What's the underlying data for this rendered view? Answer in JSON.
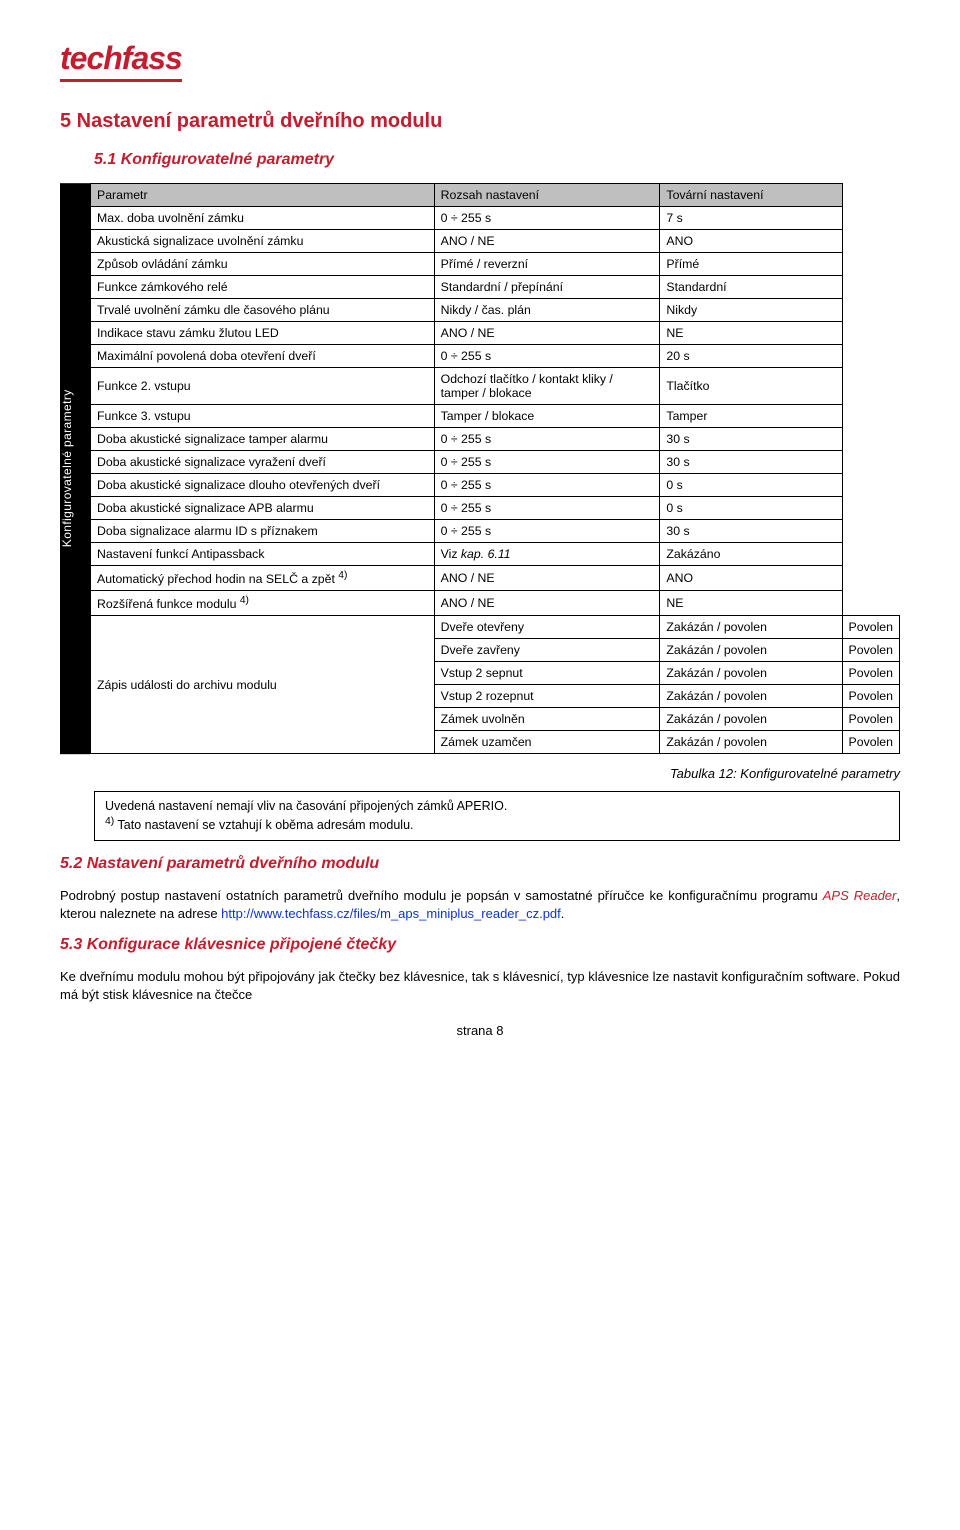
{
  "logo": "techfass",
  "h1": "5  Nastavení parametrů dveřního modulu",
  "h2_1": "5.1 Konfigurovatelné parametry",
  "sidebar_label": "Konfigurovatelné parametry",
  "table": {
    "header": {
      "col0": "Parametr",
      "col1": "Rozsah nastavení",
      "col2": "Tovární nastavení"
    },
    "rows": [
      {
        "c0": "Max. doba uvolnění zámku",
        "c1": "0 ÷ 255 s",
        "c2": "7 s"
      },
      {
        "c0": "Akustická signalizace uvolnění zámku",
        "c1": "ANO / NE",
        "c2": "ANO"
      },
      {
        "c0": "Způsob ovládání zámku",
        "c1": "Přímé / reverzní",
        "c2": "Přímé"
      },
      {
        "c0": "Funkce zámkového relé",
        "c1": "Standardní / přepínání",
        "c2": "Standardní"
      },
      {
        "c0": "Trvalé uvolnění zámku dle časového plánu",
        "c1": "Nikdy / čas. plán",
        "c2": "Nikdy"
      },
      {
        "c0": "Indikace stavu zámku žlutou LED",
        "c1": "ANO / NE",
        "c2": "NE"
      },
      {
        "c0": "Maximální povolená doba otevření dveří",
        "c1": "0 ÷ 255 s",
        "c2": "20 s"
      },
      {
        "c0": "Funkce 2. vstupu",
        "c1": "Odchozí tlačítko / kontakt kliky / tamper / blokace",
        "c2": "Tlačítko"
      },
      {
        "c0": "Funkce 3. vstupu",
        "c1": "Tamper / blokace",
        "c2": "Tamper"
      },
      {
        "c0": "Doba akustické signalizace tamper alarmu",
        "c1": "0 ÷ 255 s",
        "c2": "30 s"
      },
      {
        "c0": "Doba akustické signalizace vyražení dveří",
        "c1": "0 ÷ 255 s",
        "c2": "30 s"
      },
      {
        "c0": "Doba akustické signalizace dlouho otevřených dveří",
        "c1": "0 ÷ 255 s",
        "c2": "0 s"
      },
      {
        "c0": "Doba akustické signalizace APB alarmu",
        "c1": "0 ÷ 255 s",
        "c2": "0 s"
      },
      {
        "c0": "Doba signalizace alarmu ID s příznakem",
        "c1": "0 ÷ 255 s",
        "c2": "30 s"
      },
      {
        "c0": "Nastavení funkcí Antipassback",
        "c1": "Viz kap. 6.11",
        "c2": "Zakázáno",
        "c1_italic": true
      },
      {
        "c0": "Automatický přechod hodin na SELČ a zpět 4)",
        "c1": "ANO / NE",
        "c2": "ANO"
      },
      {
        "c0": "Rozšířená funkce modulu 4)",
        "c1": "ANO / NE",
        "c2": "NE"
      }
    ],
    "group_label": "Zápis události do archivu modulu",
    "group_rows": [
      {
        "c0": "Dveře otevřeny",
        "c1": "Zakázán / povolen",
        "c2": "Povolen"
      },
      {
        "c0": "Dveře zavřeny",
        "c1": "Zakázán / povolen",
        "c2": "Povolen"
      },
      {
        "c0": "Vstup 2 sepnut",
        "c1": "Zakázán / povolen",
        "c2": "Povolen"
      },
      {
        "c0": "Vstup 2 rozepnut",
        "c1": "Zakázán / povolen",
        "c2": "Povolen"
      },
      {
        "c0": "Zámek uvolněn",
        "c1": "Zakázán / povolen",
        "c2": "Povolen"
      },
      {
        "c0": "Zámek uzamčen",
        "c1": "Zakázán / povolen",
        "c2": "Povolen"
      }
    ],
    "col_widths": [
      "46%",
      "30%",
      "24%"
    ]
  },
  "table_caption": "Tabulka 12: Konfigurovatelné parametry",
  "note_line1": "Uvedená nastavení nemají vliv na časování připojených zámků APERIO.",
  "note_line2_prefix": "4)",
  "note_line2_rest": " Tato nastavení se vztahují k oběma adresám modulu.",
  "h2_2": "5.2 Nastavení parametrů dveřního modulu",
  "p2_a": "Podrobný postup nastavení ostatních parametrů dveřního modulu je popsán v samostatné příručce ke konfiguračnímu programu ",
  "p2_aps": "APS Reader",
  "p2_b": ", kterou naleznete na adrese ",
  "p2_link": "http://www.techfass.cz/files/m_aps_miniplus_reader_cz.pdf",
  "p2_c": ".",
  "h2_3": "5.3 Konfigurace klávesnice připojené čtečky",
  "p3": "Ke dveřnímu modulu mohou být připojovány jak čtečky bez klávesnice, tak s klávesnicí, typ klávesnice lze nastavit konfiguračním software. Pokud má být stisk klávesnice na čtečce",
  "pagenum": "strana 8"
}
